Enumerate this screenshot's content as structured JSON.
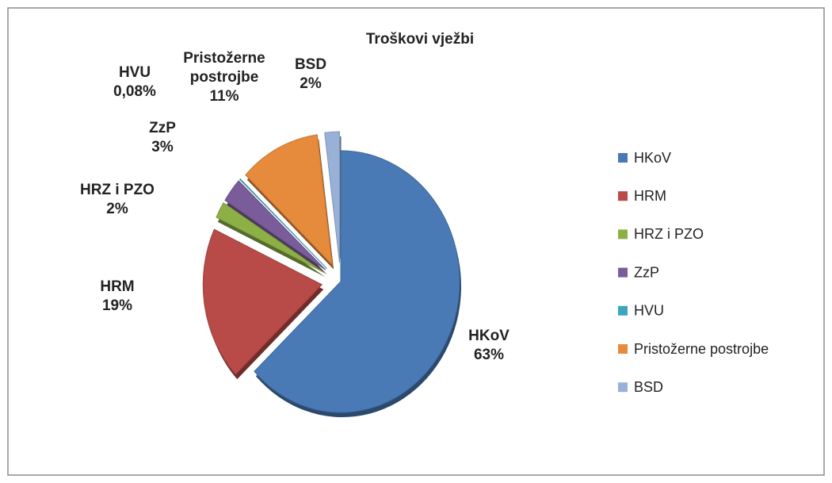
{
  "chart_data": {
    "type": "pie",
    "title": "Troškovi vježbi",
    "categories": [
      "HKoV",
      "HRM",
      "HRZ i PZO",
      "ZzP",
      "HVU",
      "Pristožerne postrojbe",
      "BSD"
    ],
    "values": [
      63,
      19,
      2,
      3,
      0.08,
      11,
      2
    ],
    "value_labels": [
      "63%",
      "19%",
      "2%",
      "3%",
      "0,08%",
      "11%",
      "2%"
    ],
    "colors": [
      "#4a7ab5",
      "#b84a47",
      "#8db046",
      "#7a5c9a",
      "#3ba6be",
      "#e68b3c",
      "#99b1d6"
    ],
    "legend": "right"
  }
}
